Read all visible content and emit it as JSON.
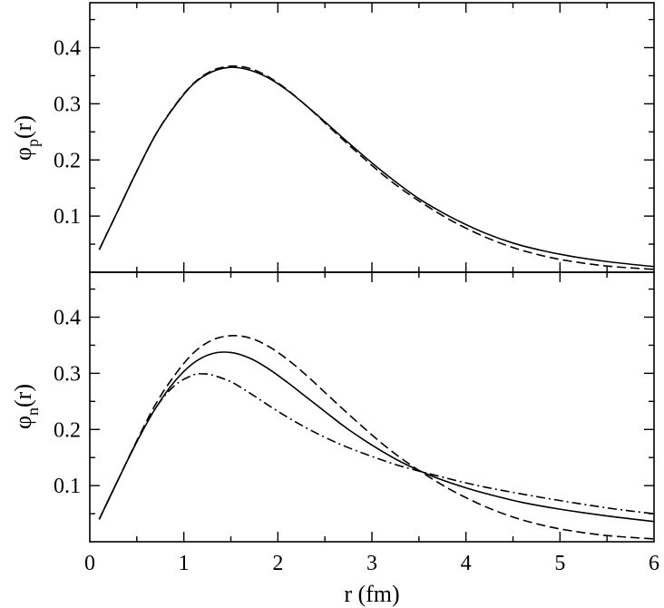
{
  "chart_data": [
    {
      "type": "line",
      "panel": "top",
      "ylabel": {
        "base": "φ",
        "sub": "p",
        "suffix": "(r)"
      },
      "xlim": [
        0,
        6
      ],
      "ylim": [
        0,
        0.48
      ],
      "yticks": [
        0.1,
        0.2,
        0.3,
        0.4
      ],
      "ytick_labels": [
        "0.1",
        "0.2",
        "0.3",
        "0.4"
      ],
      "x_minor_step": 0.5,
      "y_minor_step": 0.05,
      "series": [
        {
          "style": "solid",
          "x": [
            0.1,
            0.3,
            0.5,
            0.7,
            0.9,
            1.1,
            1.3,
            1.5,
            1.7,
            1.9,
            2.1,
            2.3,
            2.5,
            2.7,
            2.9,
            3.1,
            3.3,
            3.5,
            3.7,
            3.9,
            4.2,
            4.5,
            4.8,
            5.1,
            5.5,
            6.0
          ],
          "y": [
            0.04,
            0.11,
            0.18,
            0.245,
            0.295,
            0.335,
            0.357,
            0.365,
            0.36,
            0.346,
            0.324,
            0.297,
            0.268,
            0.238,
            0.209,
            0.181,
            0.155,
            0.131,
            0.111,
            0.093,
            0.07,
            0.052,
            0.039,
            0.029,
            0.019,
            0.01
          ]
        },
        {
          "style": "dashed",
          "x": [
            0.1,
            0.3,
            0.5,
            0.7,
            0.9,
            1.1,
            1.3,
            1.5,
            1.7,
            1.9,
            2.1,
            2.3,
            2.5,
            2.7,
            2.9,
            3.1,
            3.3,
            3.5,
            3.7,
            3.9,
            4.2,
            4.5,
            4.8,
            5.1,
            5.5,
            6.0
          ],
          "y": [
            0.04,
            0.11,
            0.18,
            0.245,
            0.296,
            0.336,
            0.359,
            0.367,
            0.363,
            0.348,
            0.325,
            0.297,
            0.266,
            0.235,
            0.205,
            0.176,
            0.15,
            0.127,
            0.106,
            0.087,
            0.063,
            0.044,
            0.03,
            0.02,
            0.011,
            0.005
          ]
        }
      ]
    },
    {
      "type": "line",
      "panel": "bottom",
      "ylabel": {
        "base": "φ",
        "sub": "n",
        "suffix": "(r)"
      },
      "xlabel": "r (fm)",
      "xlim": [
        0,
        6
      ],
      "ylim": [
        0,
        0.48
      ],
      "xticks": [
        0,
        1,
        2,
        3,
        4,
        5,
        6
      ],
      "xtick_labels": [
        "0",
        "1",
        "2",
        "3",
        "4",
        "5",
        "6"
      ],
      "yticks": [
        0.1,
        0.2,
        0.3,
        0.4
      ],
      "ytick_labels": [
        "0.1",
        "0.2",
        "0.3",
        "0.4"
      ],
      "x_minor_step": 0.5,
      "y_minor_step": 0.05,
      "series": [
        {
          "style": "solid",
          "x": [
            0.1,
            0.3,
            0.5,
            0.7,
            0.9,
            1.1,
            1.3,
            1.5,
            1.7,
            1.9,
            2.1,
            2.3,
            2.5,
            2.7,
            2.9,
            3.1,
            3.3,
            3.5,
            3.7,
            4.0,
            4.3,
            4.6,
            5.0,
            5.5,
            6.0
          ],
          "y": [
            0.04,
            0.11,
            0.178,
            0.238,
            0.285,
            0.318,
            0.335,
            0.337,
            0.327,
            0.308,
            0.284,
            0.258,
            0.232,
            0.206,
            0.183,
            0.162,
            0.143,
            0.127,
            0.113,
            0.096,
            0.082,
            0.07,
            0.058,
            0.046,
            0.036
          ]
        },
        {
          "style": "dashed",
          "x": [
            0.1,
            0.3,
            0.5,
            0.7,
            0.9,
            1.1,
            1.3,
            1.5,
            1.7,
            1.9,
            2.1,
            2.3,
            2.5,
            2.7,
            2.9,
            3.1,
            3.3,
            3.5,
            3.7,
            3.9,
            4.2,
            4.5,
            4.8,
            5.1,
            5.5,
            6.0
          ],
          "y": [
            0.04,
            0.11,
            0.18,
            0.245,
            0.296,
            0.336,
            0.359,
            0.367,
            0.363,
            0.348,
            0.325,
            0.297,
            0.266,
            0.235,
            0.205,
            0.176,
            0.15,
            0.127,
            0.106,
            0.087,
            0.063,
            0.044,
            0.03,
            0.02,
            0.011,
            0.005
          ]
        },
        {
          "style": "dash-dot",
          "x": [
            0.1,
            0.3,
            0.5,
            0.7,
            0.9,
            1.1,
            1.2,
            1.3,
            1.5,
            1.7,
            1.9,
            2.1,
            2.3,
            2.5,
            2.7,
            2.9,
            3.1,
            3.3,
            3.5,
            3.8,
            4.1,
            4.4,
            4.8,
            5.2,
            5.6,
            6.0
          ],
          "y": [
            0.04,
            0.11,
            0.178,
            0.238,
            0.278,
            0.297,
            0.299,
            0.297,
            0.285,
            0.265,
            0.243,
            0.222,
            0.203,
            0.186,
            0.171,
            0.158,
            0.146,
            0.135,
            0.126,
            0.113,
            0.101,
            0.091,
            0.079,
            0.068,
            0.058,
            0.05
          ]
        }
      ]
    }
  ]
}
